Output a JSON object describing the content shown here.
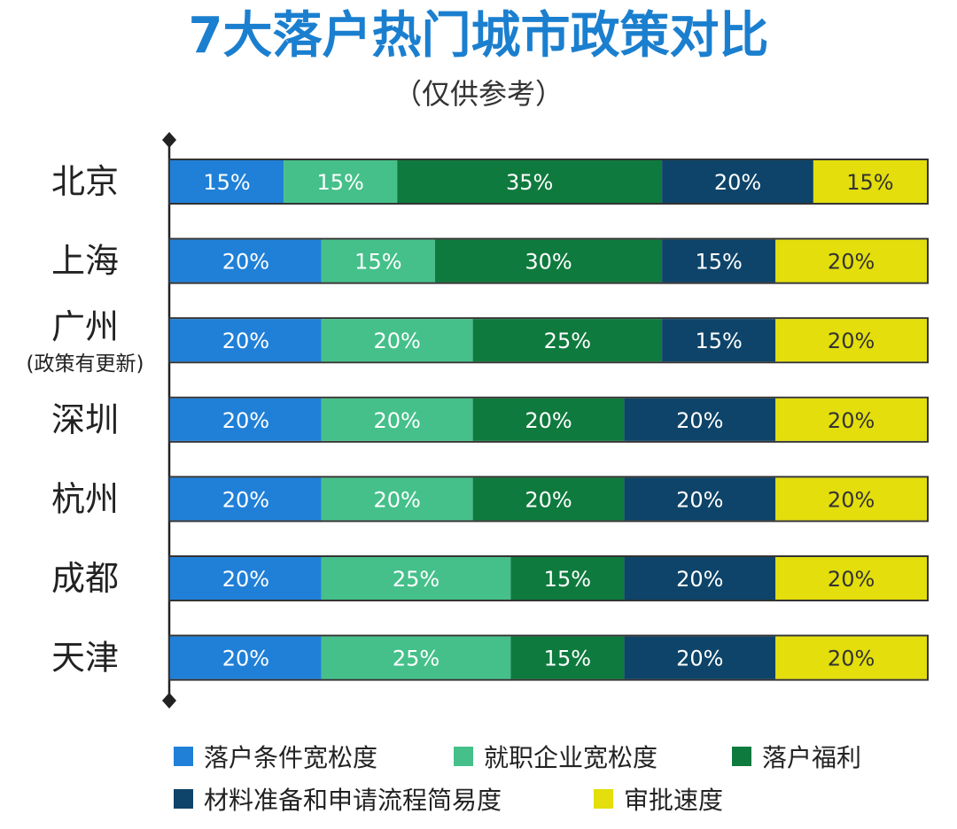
{
  "title": "7大落户热门城市政策对比",
  "subtitle": "（仅供参考）",
  "chart_data": {
    "type": "bar",
    "orientation": "horizontal",
    "stacked": true,
    "title": "7大落户热门城市政策对比",
    "subtitle": "（仅供参考）",
    "categories": [
      "北京",
      "上海",
      "广州",
      "深圳",
      "杭州",
      "成都",
      "天津"
    ],
    "category_notes": [
      "",
      "",
      "(政策有更新)",
      "",
      "",
      "",
      ""
    ],
    "series": [
      {
        "name": "落户条件宽松度",
        "color": "#2080D8",
        "values": [
          15,
          20,
          20,
          20,
          20,
          20,
          20
        ]
      },
      {
        "name": "就职企业宽松度",
        "color": "#45C08A",
        "values": [
          15,
          15,
          20,
          20,
          20,
          25,
          25
        ]
      },
      {
        "name": "落户福利",
        "color": "#0F7A3E",
        "values": [
          35,
          30,
          25,
          20,
          20,
          15,
          15
        ]
      },
      {
        "name": "材料准备和申请流程简易度",
        "color": "#0E4469",
        "values": [
          20,
          15,
          15,
          20,
          20,
          20,
          20
        ]
      },
      {
        "name": "审批速度",
        "color": "#E3DE0C",
        "values": [
          15,
          20,
          20,
          20,
          20,
          20,
          20
        ]
      }
    ],
    "value_suffix": "%",
    "xlim": [
      0,
      100
    ],
    "grid": false,
    "legend_position": "bottom"
  }
}
